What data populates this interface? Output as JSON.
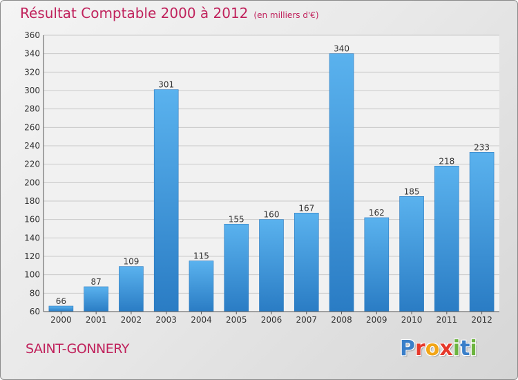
{
  "header": {
    "title": "Résultat Comptable 2000 à 2012",
    "subtitle": "(en milliers d'€)"
  },
  "footer": {
    "place": "SAINT-GONNERY",
    "logo_letters": [
      "P",
      "r",
      "o",
      "x",
      "i",
      "t",
      "i"
    ],
    "logo_colors": [
      "#3a7fc9",
      "#e6392b",
      "#f2a516",
      "#e6392b",
      "#6cb43f",
      "#3a7fc9",
      "#6cb43f"
    ]
  },
  "chart_data": {
    "type": "bar",
    "categories": [
      "2000",
      "2001",
      "2002",
      "2003",
      "2004",
      "2005",
      "2006",
      "2007",
      "2008",
      "2009",
      "2010",
      "2011",
      "2012"
    ],
    "values": [
      66,
      87,
      109,
      301,
      115,
      155,
      160,
      167,
      340,
      162,
      185,
      218,
      233
    ],
    "title": "Résultat Comptable 2000 à 2012",
    "xlabel": "",
    "ylabel": "",
    "ylim": [
      60,
      360
    ],
    "yticks": [
      60,
      80,
      100,
      120,
      140,
      160,
      180,
      200,
      220,
      240,
      260,
      280,
      300,
      320,
      340,
      360
    ],
    "grid": true,
    "bar_color": "#3d94da"
  }
}
